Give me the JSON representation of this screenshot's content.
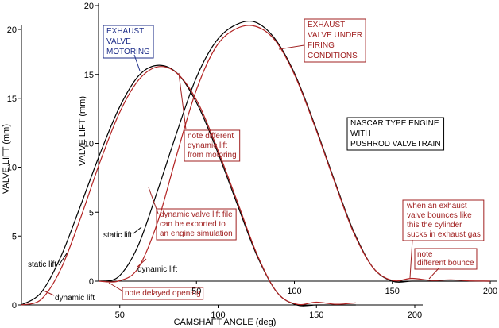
{
  "chart_data": [
    {
      "type": "line",
      "title": "",
      "xlabel": "CAMSHAFT ANGLE (deg)",
      "ylabel": "VALVE LIFT (mm)",
      "xlim": [
        0,
        210
      ],
      "ylim": [
        0,
        20
      ],
      "x_ticks": [
        50,
        100,
        150,
        200
      ],
      "y_ticks": [
        0,
        5,
        10,
        15,
        20
      ],
      "grid": false,
      "series": [
        {
          "name": "static lift",
          "color": "#000000",
          "x": [
            0,
            10,
            20,
            30,
            40,
            50,
            60,
            70,
            80,
            90,
            100,
            110,
            120,
            130,
            140,
            150,
            160,
            170
          ],
          "y": [
            0,
            0.9,
            3.5,
            7.2,
            11.0,
            14.4,
            16.7,
            17.4,
            16.7,
            14.4,
            11.0,
            7.2,
            3.5,
            0.9,
            0,
            0,
            0,
            0
          ]
        },
        {
          "name": "dynamic lift",
          "color": "#b22222",
          "x": [
            0,
            10,
            20,
            30,
            40,
            50,
            60,
            70,
            80,
            90,
            100,
            110,
            120,
            130,
            140,
            150,
            160,
            170
          ],
          "y": [
            0,
            0.4,
            2.6,
            6.3,
            10.4,
            14.0,
            16.4,
            17.3,
            16.7,
            14.6,
            11.2,
            7.4,
            3.6,
            0.9,
            0.05,
            0.2,
            0.05,
            0.15
          ]
        }
      ],
      "annotations": [
        "EXHAUST VALVE MOTORING",
        "static lift",
        "dynamic lift",
        "note delayed opening"
      ]
    },
    {
      "type": "line",
      "title": "",
      "xlabel": "",
      "ylabel": "VALVE LIFT (mm)",
      "xlim": [
        0,
        200
      ],
      "ylim": [
        0,
        20
      ],
      "x_ticks": [
        50,
        100,
        150,
        200
      ],
      "y_ticks": [
        0,
        5,
        10,
        15,
        20
      ],
      "grid": false,
      "series": [
        {
          "name": "static lift",
          "color": "#000000",
          "x": [
            0,
            10,
            20,
            30,
            40,
            50,
            60,
            70,
            80,
            90,
            100,
            110,
            120,
            130,
            140,
            150,
            160,
            170,
            180,
            190,
            200
          ],
          "y": [
            0,
            0.3,
            2.5,
            6.5,
            10.8,
            14.8,
            17.4,
            18.6,
            18.8,
            17.6,
            15.1,
            11.5,
            7.5,
            3.7,
            1.0,
            0,
            0,
            0,
            0,
            0,
            0
          ]
        },
        {
          "name": "dynamic lift",
          "color": "#b22222",
          "x": [
            0,
            10,
            20,
            30,
            40,
            50,
            60,
            70,
            80,
            90,
            100,
            110,
            120,
            130,
            140,
            150,
            160,
            170,
            180,
            190,
            200
          ],
          "y": [
            0,
            0,
            0.9,
            4.2,
            9.2,
            13.9,
            17.0,
            18.3,
            18.5,
            17.5,
            15.0,
            11.4,
            7.4,
            3.6,
            1.0,
            0.05,
            0.2,
            0.05,
            0.1,
            0.02,
            0
          ]
        }
      ],
      "annotations": [
        "EXHAUST VALVE UNDER FIRING CONDITIONS",
        "NASCAR TYPE ENGINE WITH PUSHROD VALVETRAIN",
        "note different dynamic lift from motoring",
        "dynamic valve lift file can be exported to an engine simulation",
        "static lift",
        "dynamic lift",
        "when an exhaust valve bounces like this the cylinder sucks in exhaust gas",
        "note different bounce"
      ]
    }
  ],
  "labels": {
    "back_motoring": "EXHAUST\nVALVE\nMOTORING",
    "back_static": "static lift",
    "back_dynamic": "dynamic lift",
    "back_delayed": "note delayed opening",
    "front_firing": "EXHAUST\nVALVE UNDER\nFIRING\nCONDITIONS",
    "front_nascar": "NASCAR TYPE ENGINE\nWITH\nPUSHROD VALVETRAIN",
    "front_note_diff": "note different\ndynamic lift\nfrom motoring",
    "front_export": "dynamic valve lift file\ncan be exported to\nan engine simulation",
    "front_static": "static lift",
    "front_dynamic": "dynamic lift",
    "front_bounce": "when an exhaust\nvalve bounces like\nthis the cylinder\nsucks in exhaust gas",
    "front_note_bounce": "note\ndifferent bounce"
  },
  "colors": {
    "static": "#000000",
    "dynamic": "#b22222",
    "blue_box": "#1f2f8a",
    "red_box": "#a02020",
    "black_box": "#000000"
  }
}
